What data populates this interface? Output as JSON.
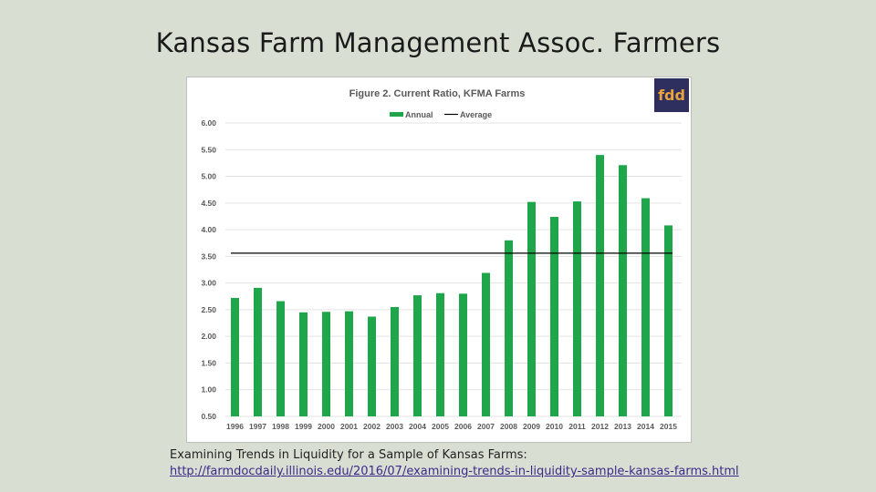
{
  "slide": {
    "title": "Kansas Farm Management Assoc. Farmers",
    "caption_line1": "Examining Trends in Liquidity for a Sample of Kansas Farms:",
    "caption_link": "http://farmdocdaily.illinois.edu/2016/07/examining-trends-in-liquidity-sample-kansas-farms.html"
  },
  "logo": {
    "text": "fdd",
    "bg_color": "#2e2f5e",
    "fg_color": "#e8a33a"
  },
  "chart_data": {
    "type": "bar",
    "title": "Figure 2.  Current Ratio, KFMA Farms",
    "legend": {
      "placement": "top-center",
      "entries": [
        "Annual",
        "Average"
      ]
    },
    "xlabel": "",
    "ylabel": "",
    "ylim": [
      0.5,
      6.0
    ],
    "yticks": [
      "6.00",
      "5.50",
      "5.00",
      "4.50",
      "4.00",
      "3.50",
      "3.00",
      "2.50",
      "2.00",
      "1.50",
      "1.00",
      "0.50"
    ],
    "grid": true,
    "bar_color": "#1fa64a",
    "average_color": "#000000",
    "categories": [
      "1996",
      "1997",
      "1998",
      "1999",
      "2000",
      "2001",
      "2002",
      "2003",
      "2004",
      "2005",
      "2006",
      "2007",
      "2008",
      "2009",
      "2010",
      "2011",
      "2012",
      "2013",
      "2014",
      "2015"
    ],
    "series": [
      {
        "name": "Annual",
        "type": "bar",
        "values": [
          2.72,
          2.91,
          2.66,
          2.45,
          2.46,
          2.47,
          2.37,
          2.55,
          2.77,
          2.81,
          2.8,
          3.19,
          3.8,
          4.52,
          4.24,
          4.53,
          5.4,
          5.21,
          4.59,
          4.08
        ]
      },
      {
        "name": "Average",
        "type": "line",
        "value": 3.56
      }
    ]
  }
}
